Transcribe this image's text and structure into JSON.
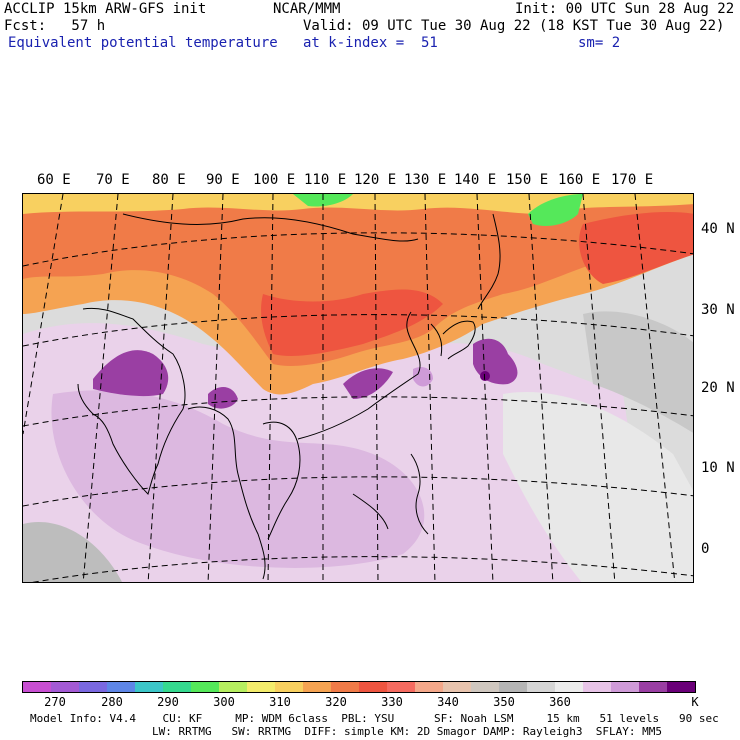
{
  "header": {
    "model": "ACCLIP 15km ARW-GFS init",
    "center": "NCAR/MMM",
    "init": "Init: 00 UTC Sun 28 Aug 22",
    "fcst": "Fcst:   57 h",
    "valid": "Valid: 09 UTC Tue 30 Aug 22 (18 KST Tue 30 Aug 22)",
    "field": "Equivalent potential temperature",
    "level": "at k-index =  51",
    "smooth": "sm= 2"
  },
  "lon_labels": [
    "60 E",
    "70 E",
    "80 E",
    "90 E",
    "100 E",
    "110 E",
    "120 E",
    "130 E",
    "140 E",
    "150 E",
    "160 E",
    "170 E"
  ],
  "lat_labels": [
    "40 N",
    "30 N",
    "20 N",
    "10 N",
    "0"
  ],
  "colorbar": {
    "colors": [
      "#c84fd2",
      "#a35ad4",
      "#7a68e0",
      "#5e86e6",
      "#3cc6c8",
      "#35d98f",
      "#55e85a",
      "#b6ee60",
      "#f3ec6c",
      "#f8d060",
      "#f5a352",
      "#f07b48",
      "#ee5540",
      "#f56b60",
      "#f4a88a",
      "#e8c4ae",
      "#cfc7bf",
      "#b5b5b5",
      "#d5d5d5",
      "#ececec",
      "#e7c4e7",
      "#cf9bd8",
      "#9a3fa3",
      "#6a0078"
    ],
    "ticks": [
      "270",
      "280",
      "290",
      "300",
      "310",
      "320",
      "330",
      "340",
      "350",
      "360"
    ],
    "unit": "K"
  },
  "footer": {
    "line1": "Model Info: V4.4    CU: KF     MP: WDM 6class  PBL: YSU      SF: Noah LSM     15 km   51 levels   90 sec",
    "line2": "LW: RRTMG   SW: RRTMG  DIFF: simple KM: 2D Smagor DAMP: Rayleigh3  SFLAY: MM5"
  }
}
